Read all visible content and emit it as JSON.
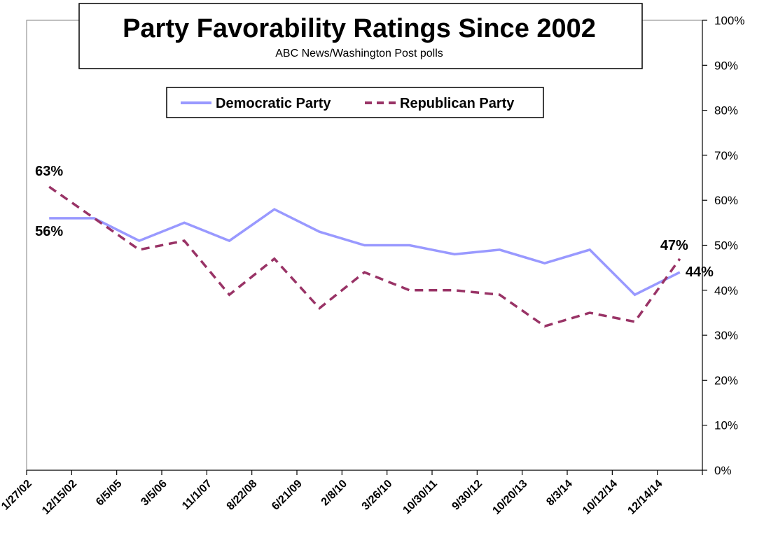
{
  "chart_data": {
    "type": "line",
    "title": "Party Favorability Ratings Since 2002",
    "subtitle": "ABC News/Washington  Post polls",
    "categories": [
      "1/27/02",
      "12/15/02",
      "6/5/05",
      "3/5/06",
      "11/1/07",
      "8/22/08",
      "6/21/09",
      "2/8/10",
      "3/26/10",
      "10/30/11",
      "9/30/12",
      "10/20/13",
      "8/3/14",
      "10/12/14",
      "12/14/14"
    ],
    "series": [
      {
        "name": "Democratic Party",
        "color": "#9999ff",
        "style": "solid",
        "values": [
          56,
          56,
          51,
          55,
          51,
          58,
          53,
          50,
          50,
          48,
          49,
          46,
          49,
          39,
          44
        ]
      },
      {
        "name": "Republican Party",
        "color": "#993366",
        "style": "dashed",
        "values": [
          63,
          56,
          49,
          51,
          39,
          47,
          36,
          44,
          40,
          40,
          39,
          32,
          35,
          33,
          47
        ]
      }
    ],
    "y_axis": {
      "position": "right",
      "min": 0,
      "max": 100,
      "step": 10,
      "tick_labels": [
        "0%",
        "10%",
        "20%",
        "30%",
        "40%",
        "50%",
        "60%",
        "70%",
        "80%",
        "90%",
        "100%"
      ]
    },
    "data_labels": [
      {
        "series": 1,
        "index": 0,
        "text": "63%"
      },
      {
        "series": 0,
        "index": 0,
        "text": "56%"
      },
      {
        "series": 1,
        "index": 14,
        "text": "47%"
      },
      {
        "series": 0,
        "index": 14,
        "text": "44%"
      }
    ],
    "legend_position": "top",
    "grid": false
  }
}
